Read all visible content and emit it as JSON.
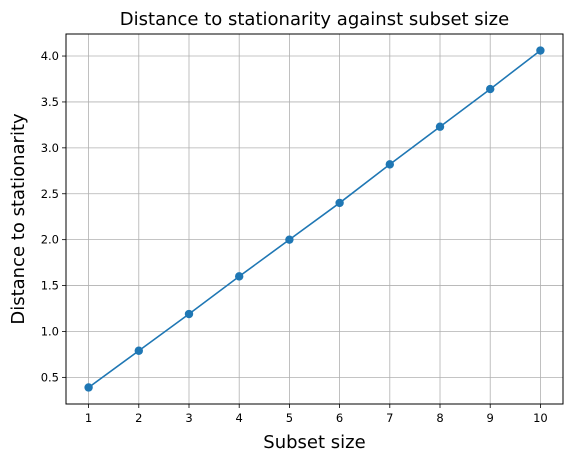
{
  "chart_data": {
    "type": "line",
    "title": "Distance to stationarity against subset size",
    "xlabel": "Subset size",
    "ylabel": "Distance to stationarity",
    "x": [
      1,
      2,
      3,
      4,
      5,
      6,
      7,
      8,
      9,
      10
    ],
    "series": [
      {
        "values": [
          0.39,
          0.79,
          1.19,
          1.6,
          2.0,
          2.4,
          2.82,
          3.23,
          3.64,
          4.06
        ],
        "color": "#1f77b4",
        "marker": "circle"
      }
    ],
    "xticks": [
      "1",
      "2",
      "3",
      "4",
      "5",
      "6",
      "7",
      "8",
      "9",
      "10"
    ],
    "yticks": [
      "0.5",
      "1.0",
      "1.5",
      "2.0",
      "2.5",
      "3.0",
      "3.5",
      "4.0"
    ],
    "xlim": [
      0.55,
      10.45
    ],
    "ylim": [
      0.21,
      4.24
    ],
    "grid": true,
    "colors": {
      "grid": "#b0b0b0",
      "axes": "#000000",
      "line": "#1f77b4"
    }
  }
}
